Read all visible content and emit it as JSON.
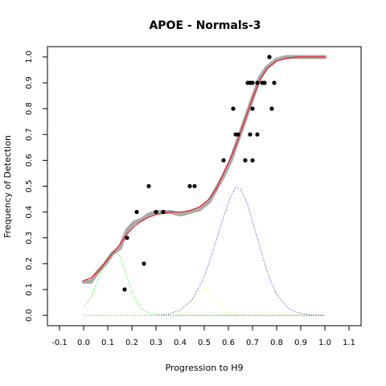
{
  "chart_data": {
    "type": "scatter",
    "title": "APOE - Normals-3",
    "xlabel": "Progression to H9",
    "ylabel": "Frequency of Detection",
    "xlim": [
      -0.15,
      1.15
    ],
    "ylim": [
      -0.04,
      1.04
    ],
    "x_ticks": [
      -0.1,
      0.0,
      0.1,
      0.2,
      0.3,
      0.4,
      0.5,
      0.6,
      0.7,
      0.8,
      0.9,
      1.0,
      1.1
    ],
    "x_tick_labels": [
      "-0.1",
      "0.0",
      "0.1",
      "0.2",
      "0.3",
      "0.4",
      "0.5",
      "0.6",
      "0.7",
      "0.8",
      "0.9",
      "1.0",
      "1.1"
    ],
    "y_ticks": [
      0.0,
      0.1,
      0.2,
      0.3,
      0.4,
      0.5,
      0.6,
      0.7,
      0.8,
      0.9,
      1.0
    ],
    "y_tick_labels": [
      "0.0",
      "0.1",
      "0.2",
      "0.3",
      "0.4",
      "0.5",
      "0.6",
      "0.7",
      "0.8",
      "0.9",
      "1.0"
    ],
    "grid": false,
    "legend": "none",
    "colors": {
      "observed": "#000000",
      "smoothed": "#aaaaaa",
      "fit": "#ff0000",
      "component1": "#00ee00",
      "component2": "#eeee44",
      "component3": "#3333dd",
      "baseline": "#999900"
    },
    "series": [
      {
        "kind": "points",
        "color": "#000000",
        "x": [
          0.17,
          0.18,
          0.22,
          0.25,
          0.27,
          0.3,
          0.33,
          0.44,
          0.46,
          0.58,
          0.62,
          0.63,
          0.64,
          0.67,
          0.68,
          0.69,
          0.69,
          0.7,
          0.7,
          0.7,
          0.72,
          0.72,
          0.74,
          0.75,
          0.77,
          0.78,
          0.79
        ],
        "y": [
          0.1,
          0.3,
          0.4,
          0.2,
          0.5,
          0.4,
          0.4,
          0.5,
          0.5,
          0.6,
          0.8,
          0.7,
          0.7,
          0.6,
          0.9,
          0.7,
          0.9,
          0.9,
          0.8,
          0.6,
          0.7,
          0.9,
          0.9,
          0.9,
          1.0,
          0.8,
          0.9
        ]
      },
      {
        "kind": "band",
        "color": "#aaaaaa",
        "x": [
          0.0,
          0.03,
          0.06,
          0.09,
          0.12,
          0.15,
          0.18,
          0.21,
          0.24,
          0.27,
          0.3,
          0.33,
          0.36,
          0.4,
          0.44,
          0.48,
          0.52,
          0.55,
          0.58,
          0.61,
          0.64,
          0.67,
          0.7,
          0.73,
          0.76,
          0.8,
          0.84,
          0.88,
          0.92,
          0.96,
          1.0
        ],
        "y": [
          0.13,
          0.13,
          0.17,
          0.2,
          0.24,
          0.26,
          0.33,
          0.36,
          0.37,
          0.39,
          0.4,
          0.4,
          0.4,
          0.39,
          0.4,
          0.41,
          0.44,
          0.49,
          0.54,
          0.6,
          0.68,
          0.76,
          0.84,
          0.92,
          0.96,
          0.99,
          1.0,
          1.0,
          1.0,
          1.0,
          1.0
        ]
      },
      {
        "kind": "line",
        "color": "#ff0000",
        "x": [
          0.0,
          0.03,
          0.06,
          0.09,
          0.12,
          0.15,
          0.18,
          0.21,
          0.24,
          0.27,
          0.3,
          0.33,
          0.36,
          0.4,
          0.44,
          0.48,
          0.52,
          0.55,
          0.58,
          0.61,
          0.64,
          0.67,
          0.7,
          0.73,
          0.76,
          0.8,
          0.84,
          0.88,
          0.92,
          0.96,
          1.0
        ],
        "y": [
          0.135,
          0.145,
          0.17,
          0.205,
          0.24,
          0.275,
          0.315,
          0.345,
          0.365,
          0.38,
          0.39,
          0.395,
          0.4,
          0.4,
          0.405,
          0.42,
          0.45,
          0.49,
          0.55,
          0.61,
          0.68,
          0.76,
          0.84,
          0.91,
          0.955,
          0.985,
          0.995,
          1.0,
          1.0,
          1.0,
          1.0
        ]
      },
      {
        "kind": "dotted",
        "color": "#00ee00",
        "x": [
          0.0,
          0.03,
          0.06,
          0.09,
          0.12,
          0.15,
          0.18,
          0.21,
          0.24,
          0.27,
          0.3,
          0.33,
          0.36,
          0.4,
          0.45,
          0.55,
          0.65,
          0.75,
          0.85,
          0.95,
          1.0
        ],
        "y": [
          0.03,
          0.07,
          0.14,
          0.21,
          0.25,
          0.23,
          0.15,
          0.07,
          0.025,
          0.008,
          0.002,
          0.0,
          0.0,
          0.0,
          0.0,
          0.0,
          0.0,
          0.0,
          0.0,
          0.0,
          0.0
        ]
      },
      {
        "kind": "dotted",
        "color": "#eeee44",
        "x": [
          0.35,
          0.38,
          0.41,
          0.44,
          0.47,
          0.49,
          0.51,
          0.54,
          0.57,
          0.6,
          0.63,
          0.66
        ],
        "y": [
          0.0,
          0.005,
          0.02,
          0.05,
          0.085,
          0.1,
          0.095,
          0.07,
          0.035,
          0.012,
          0.003,
          0.0
        ]
      },
      {
        "kind": "dotted",
        "color": "#3333dd",
        "x": [
          0.3,
          0.35,
          0.4,
          0.45,
          0.5,
          0.54,
          0.58,
          0.61,
          0.63,
          0.65,
          0.68,
          0.72,
          0.76,
          0.8,
          0.85,
          0.9,
          0.95,
          1.0
        ],
        "y": [
          0.0,
          0.005,
          0.02,
          0.06,
          0.15,
          0.26,
          0.38,
          0.46,
          0.495,
          0.49,
          0.43,
          0.3,
          0.17,
          0.08,
          0.025,
          0.007,
          0.001,
          0.0
        ]
      },
      {
        "kind": "dotted",
        "color": "#999900",
        "x": [
          0.0,
          1.0
        ],
        "y": [
          0.0,
          0.0
        ]
      }
    ]
  }
}
